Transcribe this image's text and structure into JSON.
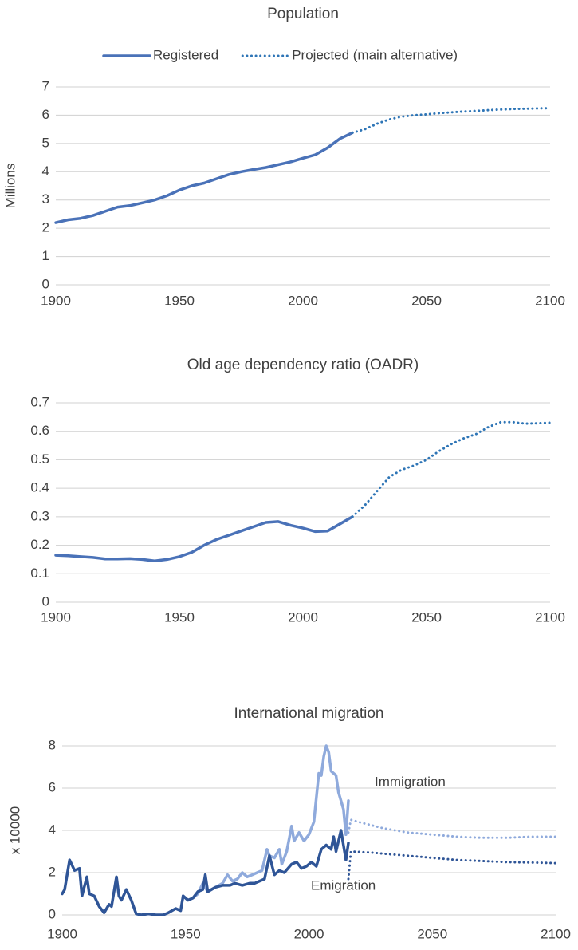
{
  "chart_data": [
    {
      "type": "line",
      "title": "Population",
      "ylabel": "Millions",
      "legend": "top",
      "grid": true,
      "xlim": [
        1900,
        2100
      ],
      "xticks": [
        1900,
        1950,
        2000,
        2050,
        2100
      ],
      "ylim": [
        0,
        7
      ],
      "yticks": [
        0,
        1,
        2,
        3,
        4,
        5,
        6,
        7
      ],
      "series": [
        {
          "name": "Registered",
          "color": "#4a72b8",
          "dashed": false,
          "x": [
            1900,
            1905,
            1910,
            1915,
            1920,
            1925,
            1930,
            1935,
            1940,
            1945,
            1950,
            1955,
            1960,
            1965,
            1970,
            1975,
            1980,
            1985,
            1990,
            1995,
            2000,
            2005,
            2010,
            2015,
            2020
          ],
          "values": [
            2.2,
            2.3,
            2.35,
            2.45,
            2.6,
            2.75,
            2.8,
            2.9,
            3.0,
            3.15,
            3.35,
            3.5,
            3.6,
            3.75,
            3.9,
            4.0,
            4.08,
            4.15,
            4.25,
            4.35,
            4.48,
            4.6,
            4.85,
            5.17,
            5.38
          ]
        },
        {
          "name": "Projected (main alternative)",
          "color": "#2e75b6",
          "dashed": true,
          "x": [
            2020,
            2025,
            2030,
            2035,
            2040,
            2045,
            2050,
            2055,
            2060,
            2065,
            2070,
            2075,
            2080,
            2085,
            2090,
            2095,
            2100
          ],
          "values": [
            5.38,
            5.5,
            5.7,
            5.85,
            5.95,
            6.0,
            6.03,
            6.07,
            6.1,
            6.13,
            6.15,
            6.18,
            6.2,
            6.22,
            6.23,
            6.24,
            6.25
          ]
        }
      ]
    },
    {
      "type": "line",
      "title": "Old age dependency ratio (OADR)",
      "grid": true,
      "xlim": [
        1900,
        2100
      ],
      "xticks": [
        1900,
        1950,
        2000,
        2050,
        2100
      ],
      "ylim": [
        0,
        0.7
      ],
      "yticks": [
        0,
        0.1,
        0.2,
        0.3,
        0.4,
        0.5,
        0.6,
        0.7
      ],
      "series": [
        {
          "color": "#4a72b8",
          "dashed": false,
          "x": [
            1900,
            1905,
            1910,
            1915,
            1920,
            1925,
            1930,
            1935,
            1940,
            1945,
            1950,
            1955,
            1960,
            1965,
            1970,
            1975,
            1980,
            1985,
            1990,
            1995,
            2000,
            2005,
            2010,
            2015,
            2020
          ],
          "values": [
            0.165,
            0.163,
            0.16,
            0.157,
            0.152,
            0.152,
            0.153,
            0.15,
            0.145,
            0.15,
            0.16,
            0.175,
            0.2,
            0.22,
            0.235,
            0.25,
            0.265,
            0.28,
            0.283,
            0.27,
            0.26,
            0.248,
            0.25,
            0.275,
            0.3
          ]
        },
        {
          "color": "#2e75b6",
          "dashed": true,
          "x": [
            2020,
            2025,
            2030,
            2035,
            2040,
            2045,
            2050,
            2055,
            2060,
            2065,
            2070,
            2075,
            2080,
            2085,
            2090,
            2095,
            2100
          ],
          "values": [
            0.3,
            0.34,
            0.39,
            0.44,
            0.465,
            0.48,
            0.5,
            0.53,
            0.555,
            0.575,
            0.59,
            0.615,
            0.632,
            0.632,
            0.627,
            0.628,
            0.63
          ]
        }
      ]
    },
    {
      "type": "line",
      "title": "International migration",
      "ylabel": "x 10000",
      "grid": true,
      "xlim": [
        1900,
        2100
      ],
      "xticks": [
        1900,
        1950,
        2000,
        2050,
        2100
      ],
      "ylim": [
        0,
        8
      ],
      "yticks": [
        0,
        2,
        4,
        6,
        8
      ],
      "series": [
        {
          "name": "Immigration",
          "color": "#8faadc",
          "dashed": false,
          "x": [
            1949,
            1951,
            1953,
            1955,
            1957,
            1959,
            1962,
            1965,
            1967,
            1969,
            1971,
            1973,
            1975,
            1977,
            1979,
            1981,
            1983,
            1984,
            1986,
            1988,
            1989,
            1991,
            1993,
            1994,
            1996,
            1998,
            2000,
            2002,
            2004,
            2005,
            2006,
            2007,
            2008,
            2009,
            2011,
            2012,
            2014,
            2015,
            2016
          ],
          "values": [
            0.9,
            0.7,
            0.8,
            1.0,
            1.5,
            1.1,
            1.3,
            1.5,
            1.9,
            1.6,
            1.7,
            2.0,
            1.8,
            1.9,
            2.0,
            2.1,
            3.1,
            2.8,
            2.7,
            3.1,
            2.4,
            3.0,
            4.2,
            3.5,
            3.9,
            3.5,
            3.8,
            4.4,
            6.7,
            6.6,
            7.5,
            8.0,
            7.7,
            6.8,
            6.6,
            5.8,
            5.0,
            3.8,
            5.4
          ]
        },
        {
          "name": "Emigration",
          "color": "#2f5597",
          "dashed": false,
          "x": [
            1900,
            1901,
            1903,
            1905,
            1907,
            1908,
            1910,
            1911,
            1913,
            1915,
            1917,
            1919,
            1920,
            1922,
            1923,
            1924,
            1926,
            1928,
            1930,
            1932,
            1935,
            1938,
            1941,
            1943,
            1946,
            1948,
            1949,
            1951,
            1953,
            1955,
            1957,
            1958,
            1959,
            1962,
            1965,
            1968,
            1970,
            1973,
            1976,
            1978,
            1980,
            1982,
            1984,
            1986,
            1988,
            1990,
            1993,
            1995,
            1997,
            1999,
            2001,
            2003,
            2005,
            2007,
            2009,
            2010,
            2011,
            2013,
            2015,
            2016
          ],
          "values": [
            1.0,
            1.2,
            2.6,
            2.1,
            2.2,
            0.9,
            1.8,
            1.0,
            0.9,
            0.4,
            0.1,
            0.5,
            0.4,
            1.8,
            0.9,
            0.7,
            1.2,
            0.7,
            0.05,
            0.0,
            0.05,
            0.0,
            0.0,
            0.1,
            0.3,
            0.2,
            0.9,
            0.7,
            0.8,
            1.1,
            1.2,
            1.9,
            1.1,
            1.3,
            1.4,
            1.4,
            1.5,
            1.4,
            1.5,
            1.5,
            1.6,
            1.7,
            2.8,
            1.9,
            2.1,
            2.0,
            2.4,
            2.5,
            2.2,
            2.3,
            2.5,
            2.3,
            3.1,
            3.3,
            3.1,
            3.7,
            3.0,
            4.0,
            2.6,
            3.4
          ]
        },
        {
          "color": "#8faadc",
          "dashed": true,
          "x": [
            2016,
            2017,
            2020,
            2030,
            2040,
            2050,
            2060,
            2070,
            2080,
            2090,
            2100
          ],
          "values": [
            3.9,
            4.5,
            4.4,
            4.1,
            3.9,
            3.8,
            3.7,
            3.65,
            3.65,
            3.7,
            3.7
          ]
        },
        {
          "color": "#2f5597",
          "dashed": true,
          "x": [
            2016,
            2017,
            2025,
            2030,
            2040,
            2050,
            2060,
            2070,
            2080,
            2090,
            2100
          ],
          "values": [
            1.7,
            3.0,
            2.95,
            2.9,
            2.8,
            2.7,
            2.6,
            2.55,
            2.5,
            2.48,
            2.45
          ]
        }
      ]
    }
  ]
}
